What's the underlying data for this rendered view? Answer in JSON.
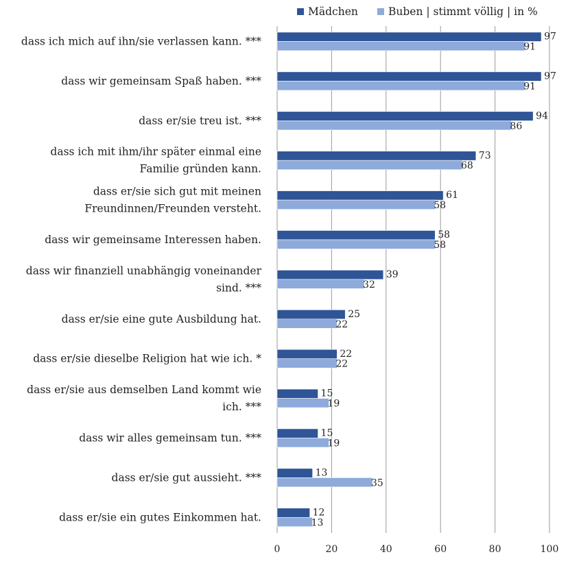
{
  "chart_data": {
    "type": "bar",
    "orientation": "horizontal",
    "categories": [
      [
        "dass ich mich auf ihn/sie verlassen kann. ***"
      ],
      [
        "dass wir gemeinsam Spaß haben. ***"
      ],
      [
        "dass er/sie treu ist. ***"
      ],
      [
        "dass ich mit ihm/ihr später einmal eine",
        "Familie gründen kann."
      ],
      [
        "dass er/sie sich gut mit meinen",
        "Freundinnen/Freunden versteht."
      ],
      [
        "dass wir gemeinsame Interessen haben."
      ],
      [
        "dass wir finanziell unabhängig voneinander",
        "sind. ***"
      ],
      [
        "dass er/sie eine gute Ausbildung hat."
      ],
      [
        "dass er/sie dieselbe Religion hat wie ich. *"
      ],
      [
        "dass er/sie aus demselben Land kommt wie",
        "ich. ***"
      ],
      [
        "dass wir alles gemeinsam tun. ***"
      ],
      [
        "dass er/sie gut aussieht. ***"
      ],
      [
        "dass er/sie ein gutes Einkommen hat."
      ]
    ],
    "series": [
      {
        "name": "Mädchen",
        "color": "#2f5597",
        "values": [
          97,
          97,
          94,
          73,
          61,
          58,
          39,
          25,
          22,
          15,
          15,
          13,
          12
        ]
      },
      {
        "name": "Buben",
        "color": "#8eaadb",
        "values": [
          91,
          91,
          86,
          68,
          58,
          58,
          32,
          22,
          22,
          19,
          19,
          35,
          13
        ]
      }
    ],
    "legend_suffix": "| stimmt völlig | in %",
    "legend_position": "top-right",
    "xlim": [
      0,
      100
    ],
    "xticks": [
      0,
      20,
      40,
      60,
      80,
      100
    ],
    "grid": true
  }
}
